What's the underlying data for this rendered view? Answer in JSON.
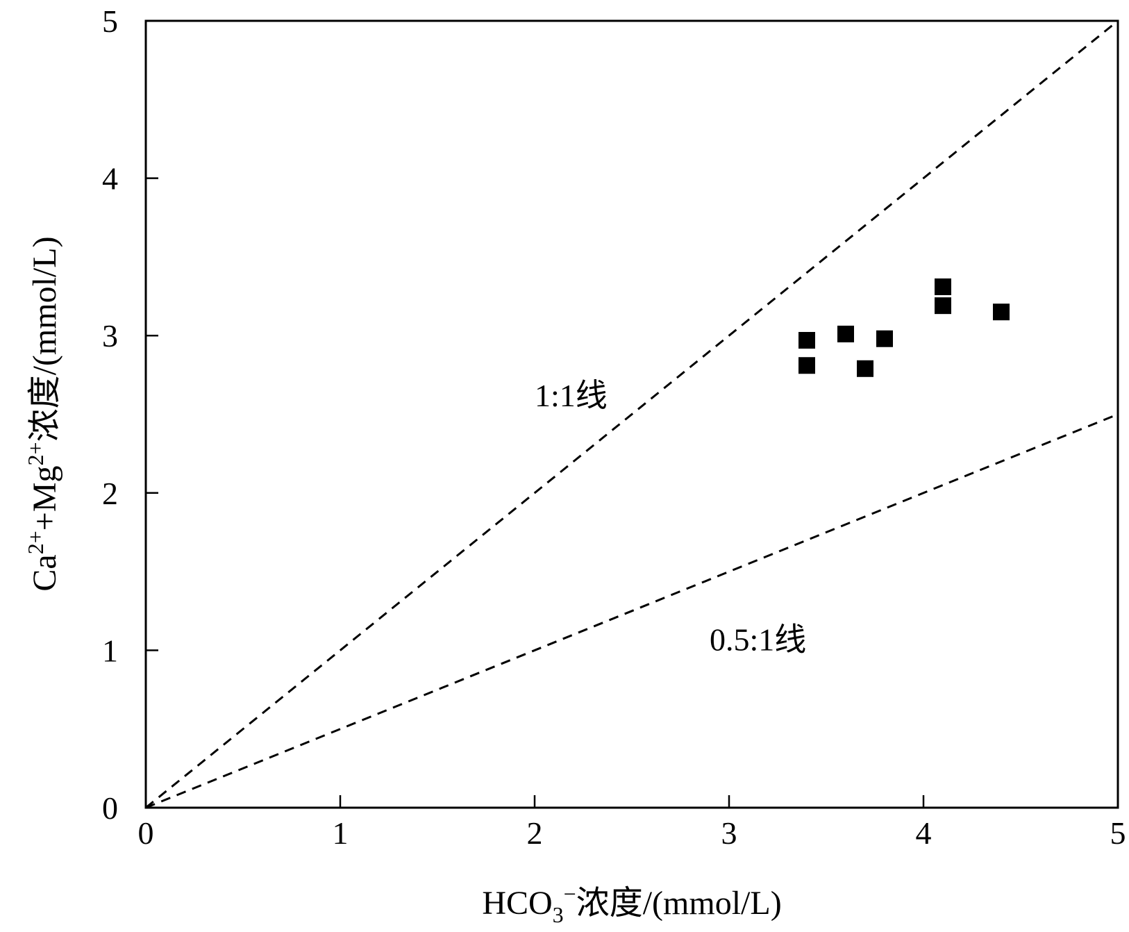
{
  "chart_data": {
    "type": "scatter",
    "xlabel": "HCO3⁻浓度/(mmol/L)",
    "xlabel_parts": {
      "base": "HCO",
      "sub": "3",
      "sup": "−",
      "rest": "浓度/(mmol/L)"
    },
    "ylabel": "Ca2++Mg2+浓度/(mmol/L)",
    "ylabel_parts": {
      "p1": "Ca",
      "s1": "2+",
      "p2": "+Mg",
      "s2": "2+",
      "p3": "浓度/(mmol/L)"
    },
    "xlim": [
      0,
      5
    ],
    "ylim": [
      0,
      5
    ],
    "xticks": [
      "0",
      "1",
      "2",
      "3",
      "4",
      "5"
    ],
    "yticks": [
      "0",
      "1",
      "2",
      "3",
      "4",
      "5"
    ],
    "grid": false,
    "reference_lines": [
      {
        "label": "1:1线",
        "slope": 1.0,
        "label_at": [
          2.0,
          2.55
        ]
      },
      {
        "label": "0.5:1线",
        "slope": 0.5,
        "label_at": [
          2.9,
          1.0
        ]
      }
    ],
    "series": [
      {
        "marker": "square",
        "color": "#000000",
        "points": [
          {
            "x": 3.4,
            "y": 2.97
          },
          {
            "x": 3.4,
            "y": 2.81
          },
          {
            "x": 3.6,
            "y": 3.01
          },
          {
            "x": 3.7,
            "y": 2.79
          },
          {
            "x": 3.8,
            "y": 2.98
          },
          {
            "x": 4.1,
            "y": 3.31
          },
          {
            "x": 4.1,
            "y": 3.19
          },
          {
            "x": 4.4,
            "y": 3.15
          }
        ]
      }
    ]
  }
}
